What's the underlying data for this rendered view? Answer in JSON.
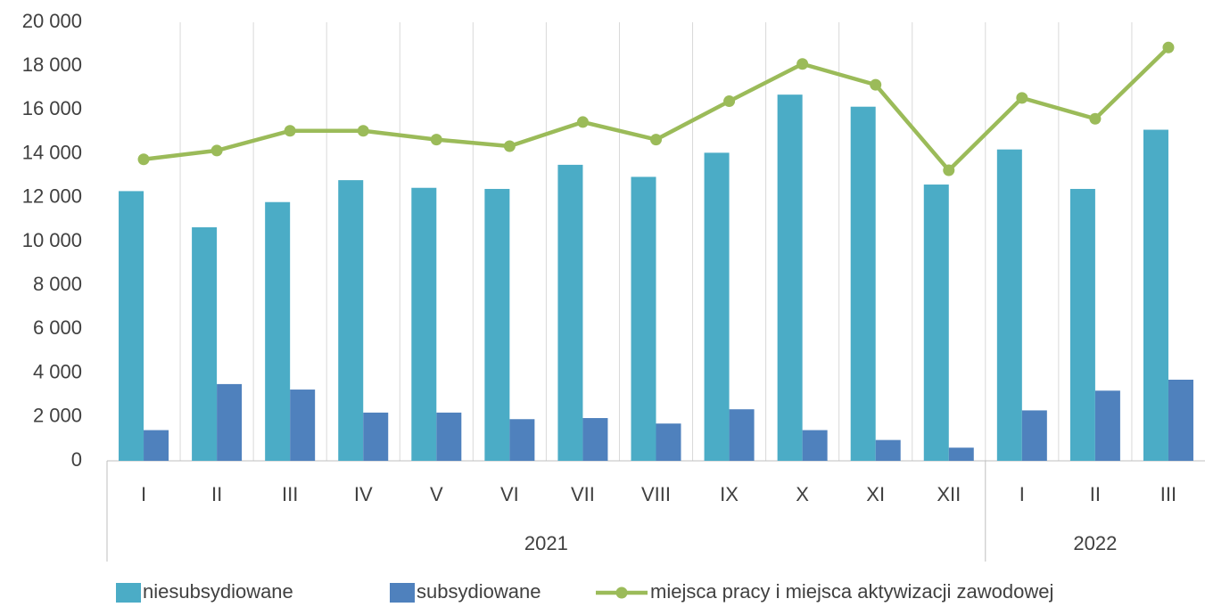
{
  "chart_data": {
    "type": "bar_line",
    "category_groups": [
      {
        "name": "2021",
        "categories": [
          "I",
          "II",
          "III",
          "IV",
          "V",
          "VI",
          "VII",
          "VIII",
          "IX",
          "X",
          "XI",
          "XII"
        ]
      },
      {
        "name": "2022",
        "categories": [
          "I",
          "II",
          "III"
        ]
      }
    ],
    "series": [
      {
        "name": "niesubsydiowane",
        "type": "bar",
        "color": "#4bacc6",
        "values": [
          12300,
          10650,
          11800,
          12800,
          12450,
          12400,
          13500,
          12950,
          14050,
          16700,
          16150,
          12600,
          14200,
          12400,
          15100
        ]
      },
      {
        "name": "subsydiowane",
        "type": "bar",
        "color": "#4f81bd",
        "values": [
          1400,
          3500,
          3250,
          2200,
          2200,
          1900,
          1950,
          1700,
          2350,
          1400,
          950,
          600,
          2300,
          3200,
          3700
        ]
      },
      {
        "name": "miejsca pracy i miejsca aktywizacji zawodowej",
        "type": "line",
        "color": "#9bbb59",
        "values": [
          13750,
          14150,
          15050,
          15050,
          14650,
          14350,
          15450,
          14650,
          16400,
          18100,
          17150,
          13250,
          16550,
          15600,
          18850
        ]
      }
    ],
    "ylim": [
      0,
      20000
    ],
    "yticks": [
      {
        "value": 0,
        "label": "0"
      },
      {
        "value": 2000,
        "label": "2 000"
      },
      {
        "value": 4000,
        "label": "4 000"
      },
      {
        "value": 6000,
        "label": "6 000"
      },
      {
        "value": 8000,
        "label": "8 000"
      },
      {
        "value": 10000,
        "label": "10 000"
      },
      {
        "value": 12000,
        "label": "12 000"
      },
      {
        "value": 14000,
        "label": "14 000"
      },
      {
        "value": 16000,
        "label": "16 000"
      },
      {
        "value": 18000,
        "label": "18 000"
      },
      {
        "value": 20000,
        "label": "20 000"
      }
    ],
    "legend": "bottom"
  }
}
